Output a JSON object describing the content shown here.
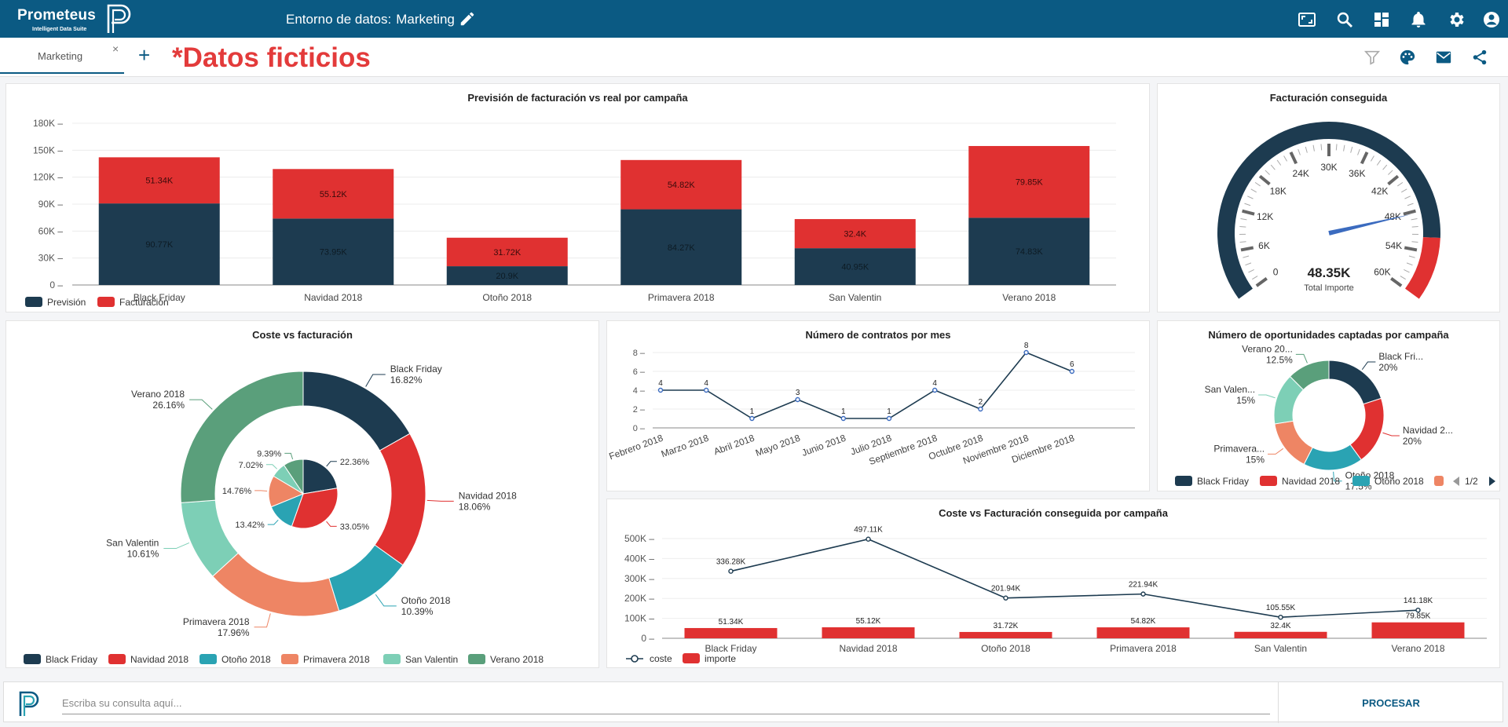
{
  "header": {
    "brand_name": "Prometeus",
    "brand_suite": "Intelligent Data Suite",
    "env_label": "Entorno de datos:",
    "env_value": "Marketing"
  },
  "tabs": {
    "active_label": "Marketing",
    "close": "×",
    "add": "+"
  },
  "watermark": "*Datos ficticios",
  "icons": {
    "top": [
      "fullscreen-icon",
      "search-icon",
      "dashboard-icon",
      "bell-icon",
      "gear-icon",
      "user-icon"
    ],
    "tab": [
      "filter-icon",
      "palette-icon",
      "mail-icon",
      "share-icon"
    ]
  },
  "colors": {
    "navy": "#1d3b50",
    "red": "#e03131",
    "teal": "#2aa3b3",
    "salmon": "#ee8564",
    "mint": "#7dcfb6",
    "green": "#5a9f7b",
    "header": "#0b5a83"
  },
  "charts": {
    "forecast": {
      "title": "Previsión de facturación vs real por campaña",
      "type": "bar",
      "stacked": true,
      "categories": [
        "Black Friday",
        "Navidad 2018",
        "Otoño 2018",
        "Primavera 2018",
        "San Valentin",
        "Verano 2018"
      ],
      "series": [
        {
          "name": "Previsión",
          "values": [
            90.77,
            73.95,
            20.9,
            84.27,
            40.95,
            74.83
          ],
          "labels": [
            "90.77K",
            "73.95K",
            "20.9K",
            "84.27K",
            "40.95K",
            "74.83K"
          ]
        },
        {
          "name": "Facturación",
          "values": [
            51.34,
            55.12,
            31.72,
            54.82,
            32.4,
            79.85
          ],
          "labels": [
            "51.34K",
            "55.12K",
            "31.72K",
            "54.82K",
            "32.4K",
            "79.85K"
          ]
        }
      ],
      "yticks": [
        "0",
        "30K",
        "60K",
        "90K",
        "120K",
        "150K",
        "180K"
      ],
      "ylim": [
        0,
        180
      ],
      "legend": "bottom-left"
    },
    "gauge": {
      "title": "Facturación conseguida",
      "value": 48.35,
      "value_label": "48.35K",
      "caption": "Total Importe",
      "ticks": [
        "0",
        "6K",
        "12K",
        "18K",
        "24K",
        "30K",
        "36K",
        "42K",
        "48K",
        "54K",
        "60K"
      ],
      "range": [
        0,
        60
      ],
      "red_from": 52
    },
    "cost": {
      "title": "Coste vs facturación",
      "type": "pie",
      "outer": [
        {
          "name": "Black Friday",
          "label": "16.82%",
          "value": 16.82
        },
        {
          "name": "Navidad 2018",
          "label": "18.06%",
          "value": 18.06
        },
        {
          "name": "Otoño 2018",
          "label": "10.39%",
          "value": 10.39
        },
        {
          "name": "Primavera 2018",
          "label": "17.96%",
          "value": 17.96
        },
        {
          "name": "San Valentin",
          "label": "10.61%",
          "value": 10.61
        },
        {
          "name": "Verano 2018",
          "label": "26.16%",
          "value": 26.16
        }
      ],
      "inner": [
        {
          "label": "22.36%",
          "value": 22.36
        },
        {
          "label": "33.05%",
          "value": 33.05
        },
        {
          "label": "13.42%",
          "value": 13.42
        },
        {
          "label": "14.76%",
          "value": 14.76
        },
        {
          "label": "7.02%",
          "value": 7.02
        },
        {
          "label": "9.39%",
          "value": 9.39
        }
      ],
      "legend": [
        "Black Friday",
        "Navidad 2018",
        "Otoño 2018",
        "Primavera 2018",
        "San Valentin",
        "Verano 2018"
      ]
    },
    "contracts": {
      "title": "Número de contratos por mes",
      "type": "line",
      "categories": [
        "Febrero 2018",
        "Marzo 2018",
        "Abril 2018",
        "Mayo 2018",
        "Junio 2018",
        "Julio 2018",
        "Septiembre 2018",
        "Octubre 2018",
        "Noviembre 2018",
        "Diciembre 2018"
      ],
      "values": [
        4,
        4,
        1,
        3,
        1,
        1,
        4,
        2,
        8,
        6
      ],
      "yticks": [
        "0",
        "2",
        "4",
        "6",
        "8"
      ],
      "ylim": [
        0,
        8
      ]
    },
    "opportunities": {
      "title": "Número de oportunidades captadas por campaña",
      "type": "pie",
      "slices": [
        {
          "name": "Black Fri...",
          "label": "20%",
          "value": 20
        },
        {
          "name": "Navidad 2...",
          "label": "20%",
          "value": 20
        },
        {
          "name": "Otoño 2018",
          "label": "17.5%",
          "value": 17.5
        },
        {
          "name": "Primavera...",
          "label": "15%",
          "value": 15
        },
        {
          "name": "San Valen...",
          "label": "15%",
          "value": 15
        },
        {
          "name": "Verano 20...",
          "label": "12.5%",
          "value": 12.5
        }
      ],
      "legend": [
        "Black Friday",
        "Navidad 2018",
        "Otoño 2018"
      ],
      "page": "1/2"
    },
    "costvs": {
      "title": "Coste vs Facturación conseguida por campaña",
      "type": "bar",
      "categories": [
        "Black Friday",
        "Navidad 2018",
        "Otoño 2018",
        "Primavera 2018",
        "San Valentin",
        "Verano 2018"
      ],
      "line": {
        "name": "coste",
        "values": [
          336.28,
          497.11,
          201.94,
          221.94,
          105.55,
          141.18
        ],
        "labels": [
          "336.28K",
          "497.11K",
          "201.94K",
          "221.94K",
          "105.55K",
          "141.18K"
        ]
      },
      "bars": {
        "name": "importe",
        "values": [
          51.34,
          55.12,
          31.72,
          54.82,
          32.4,
          79.85
        ],
        "labels": [
          "51.34K",
          "55.12K",
          "31.72K",
          "54.82K",
          "32.4K",
          "79.85K"
        ]
      },
      "yticks": [
        "0",
        "100K",
        "200K",
        "300K",
        "400K",
        "500K"
      ],
      "ylim": [
        0,
        500
      ]
    }
  },
  "query": {
    "placeholder": "Escriba su consulta aquí...",
    "button": "PROCESAR"
  }
}
